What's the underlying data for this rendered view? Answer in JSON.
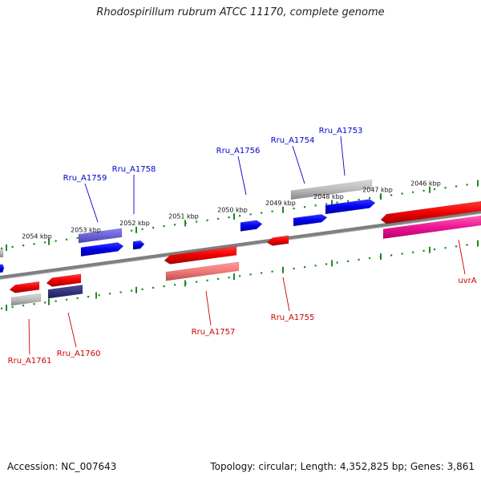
{
  "title": "Rhodospirillum rubrum ATCC 11170, complete genome",
  "footer": {
    "accession": "Accession: NC_007643",
    "topology": "Topology: circular; Length: 4,352,825 bp; Genes: 3,861"
  },
  "ticks": [
    "2054 kbp",
    "2053 kbp",
    "2052 kbp",
    "2051 kbp",
    "2050 kbp",
    "2049 kbp",
    "2048 kbp",
    "2047 kbp",
    "2046 kbp"
  ],
  "genes": [
    {
      "label": "Rru_A1753",
      "color": "#0000cc",
      "strand": "forward"
    },
    {
      "label": "Rru_A1754",
      "color": "#0000cc",
      "strand": "forward"
    },
    {
      "label": "Rru_A1756",
      "color": "#0000cc",
      "strand": "forward"
    },
    {
      "label": "Rru_A1758",
      "color": "#0000cc",
      "strand": "forward"
    },
    {
      "label": "Rru_A1759",
      "color": "#0000cc",
      "strand": "forward"
    },
    {
      "label": "uvrA",
      "color": "#cc0000",
      "strand": "reverse"
    },
    {
      "label": "Rru_A1755",
      "color": "#cc0000",
      "strand": "reverse"
    },
    {
      "label": "Rru_A1757",
      "color": "#cc0000",
      "strand": "reverse"
    },
    {
      "label": "Rru_A1760",
      "color": "#cc0000",
      "strand": "reverse"
    },
    {
      "label": "Rru_A1761",
      "color": "#cc0000",
      "strand": "reverse"
    }
  ],
  "colors": {
    "backbone": "#7f7f7f",
    "tick_track": "#1e8c1e",
    "forward_gene": "#0000ff",
    "reverse_gene": "#ff0000",
    "forward_label": "#0000cc",
    "reverse_label": "#cc0000"
  }
}
